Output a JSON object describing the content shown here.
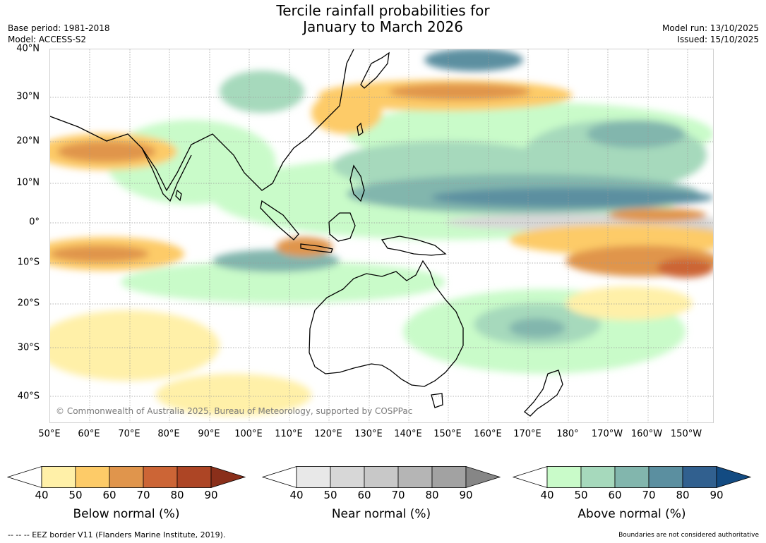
{
  "title": {
    "line1": "Tercile rainfall probabilities for",
    "line2": "January to March 2026"
  },
  "meta": {
    "base_period": "Base period: 1981-2018",
    "model": "Model: ACCESS-S2",
    "model_run": "Model run: 13/10/2025",
    "issued": "Issued: 15/10/2025"
  },
  "map": {
    "copyright": "© Commonwealth of Australia 2025, Bureau of Meteorology, supported by COSPPac",
    "lat_labels": [
      "40°N",
      "30°N",
      "20°N",
      "10°N",
      "0°",
      "10°S",
      "20°S",
      "30°S",
      "40°S"
    ],
    "lon_labels": [
      "50°E",
      "60°E",
      "70°E",
      "80°E",
      "90°E",
      "100°E",
      "110°E",
      "120°E",
      "130°E",
      "140°E",
      "150°E",
      "160°E",
      "170°E",
      "180°",
      "170°W",
      "160°W",
      "150°W"
    ]
  },
  "colorbars": [
    {
      "label": "Below normal (%)",
      "ticks": [
        "40",
        "50",
        "60",
        "70",
        "80",
        "90"
      ],
      "colors": [
        "#fff0a8",
        "#fdcb68",
        "#e0954c",
        "#cc6536",
        "#ad4525",
        "#8a2f1a"
      ]
    },
    {
      "label": "Near normal (%)",
      "ticks": [
        "40",
        "50",
        "60",
        "70",
        "80",
        "90"
      ],
      "colors": [
        "#e8e8e8",
        "#d7d7d7",
        "#c8c8c8",
        "#b5b5b5",
        "#a2a2a2",
        "#868686"
      ]
    },
    {
      "label": "Above normal (%)",
      "ticks": [
        "40",
        "50",
        "60",
        "70",
        "80",
        "90"
      ],
      "colors": [
        "#c9fbc9",
        "#a6d9bc",
        "#82b6ad",
        "#5b8fa0",
        "#31608f",
        "#134b82"
      ]
    }
  ],
  "footer": {
    "eez": "--  --  -- EEZ border V11 (Flanders Marine Institute, 2019).",
    "disclaimer": "Boundaries are not considered authoritative"
  }
}
